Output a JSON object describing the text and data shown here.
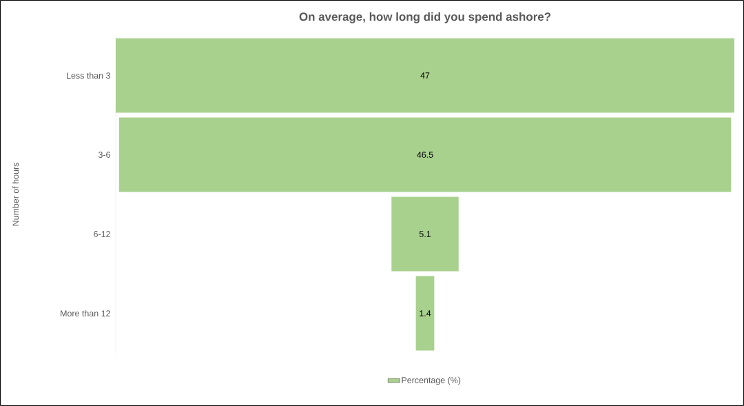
{
  "chart_data": {
    "type": "other",
    "title": "On average, how long did you spend ashore?",
    "ylabel": "Number of hours",
    "categories": [
      "Less than 3",
      "3-6",
      "6-12",
      "More than 12"
    ],
    "series": [
      {
        "name": "Percentage (%)",
        "color": "#a9d18e",
        "values": [
          47,
          46.5,
          5.1,
          1.4
        ]
      }
    ],
    "data_labels": true,
    "legend": "bottom"
  }
}
